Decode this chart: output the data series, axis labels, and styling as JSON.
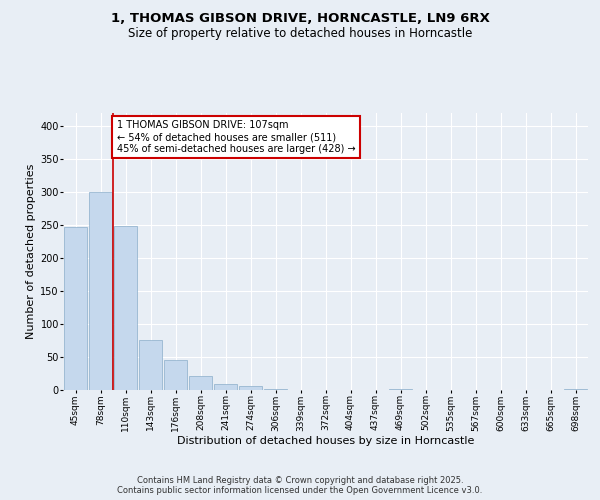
{
  "title_line1": "1, THOMAS GIBSON DRIVE, HORNCASTLE, LN9 6RX",
  "title_line2": "Size of property relative to detached houses in Horncastle",
  "xlabel": "Distribution of detached houses by size in Horncastle",
  "ylabel": "Number of detached properties",
  "categories": [
    "45sqm",
    "78sqm",
    "110sqm",
    "143sqm",
    "176sqm",
    "208sqm",
    "241sqm",
    "274sqm",
    "306sqm",
    "339sqm",
    "372sqm",
    "404sqm",
    "437sqm",
    "469sqm",
    "502sqm",
    "535sqm",
    "567sqm",
    "600sqm",
    "633sqm",
    "665sqm",
    "698sqm"
  ],
  "values": [
    247,
    300,
    248,
    76,
    46,
    21,
    9,
    6,
    2,
    0,
    0,
    0,
    0,
    1,
    0,
    0,
    0,
    0,
    0,
    0,
    2
  ],
  "bar_color": "#c5d8ed",
  "bar_edge_color": "#8baeca",
  "property_line_index": 2,
  "annotation_text": "1 THOMAS GIBSON DRIVE: 107sqm\n← 54% of detached houses are smaller (511)\n45% of semi-detached houses are larger (428) →",
  "annotation_box_color": "#ffffff",
  "annotation_box_edge": "#cc0000",
  "vline_color": "#cc0000",
  "ylim": [
    0,
    420
  ],
  "yticks": [
    0,
    50,
    100,
    150,
    200,
    250,
    300,
    350,
    400
  ],
  "bg_color": "#e8eef5",
  "plot_bg_color": "#e8eef5",
  "grid_color": "#ffffff",
  "footer_text": "Contains HM Land Registry data © Crown copyright and database right 2025.\nContains public sector information licensed under the Open Government Licence v3.0.",
  "title_fontsize": 9.5,
  "subtitle_fontsize": 8.5,
  "tick_fontsize": 6.5,
  "ylabel_fontsize": 8,
  "xlabel_fontsize": 8,
  "annotation_fontsize": 7,
  "footer_fontsize": 6
}
